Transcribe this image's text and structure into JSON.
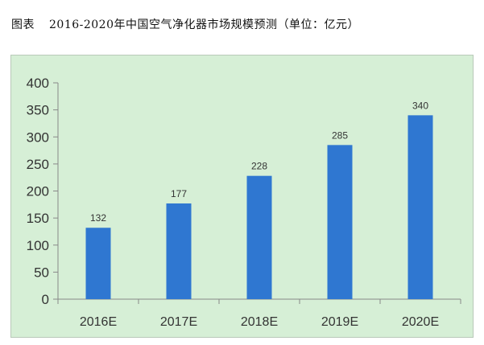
{
  "chart_data": {
    "type": "bar",
    "title_prefix": "图表",
    "title": "2016-2020年中国空气净化器市场规模预测（单位：亿元）",
    "categories": [
      "2016E",
      "2017E",
      "2018E",
      "2019E",
      "2020E"
    ],
    "values": [
      132,
      177,
      228,
      285,
      340
    ],
    "ylim": [
      0,
      400
    ],
    "y_ticks": [
      0,
      50,
      100,
      150,
      200,
      250,
      300,
      350,
      400
    ],
    "grid": false,
    "legend": "none",
    "colors": {
      "bar": "#2f77d1",
      "background": "#d6efd6",
      "axis": "#888888"
    }
  }
}
